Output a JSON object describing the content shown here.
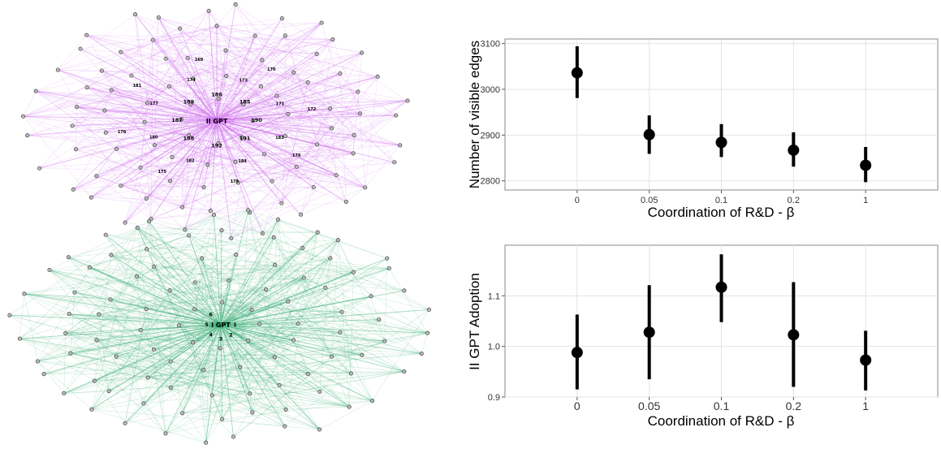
{
  "network": {
    "top": {
      "hub_label": "II GPT",
      "edge_color": "#cc66ee",
      "node_labels": [
        "190",
        "191",
        "192",
        "188",
        "187",
        "189",
        "186",
        "185",
        "183",
        "184",
        "182",
        "180",
        "177",
        "174",
        "173",
        "171",
        "176",
        "179",
        "175",
        "178",
        "181",
        "169",
        "170",
        "172"
      ]
    },
    "bottom": {
      "hub_label": "I GPT",
      "edge_color": "#2eaa6e",
      "node_labels": [
        "1",
        "2",
        "3",
        "4",
        "5",
        "6"
      ]
    }
  },
  "chart_data": [
    {
      "type": "scatter",
      "title": "",
      "xlabel": "Coordination of R&D - β",
      "ylabel": "Number of visible edges",
      "categories": [
        "0",
        "0.05",
        "0.1",
        "0.2",
        "1"
      ],
      "values": [
        3036,
        2901,
        2884,
        2867,
        2834
      ],
      "error_low": [
        2981,
        2859,
        2852,
        2831,
        2797
      ],
      "error_high": [
        3094,
        2943,
        2924,
        2906,
        2874
      ],
      "ylim": [
        2780,
        3110
      ],
      "yticks": [
        "2800",
        "2900",
        "3000",
        "3100"
      ],
      "grid": true
    },
    {
      "type": "scatter",
      "title": "",
      "xlabel": "Coordination of R&D - β",
      "ylabel": "II GPT Adoption",
      "categories": [
        "0",
        "0.05",
        "0.1",
        "0.2",
        "1"
      ],
      "values": [
        0.988,
        1.028,
        1.117,
        1.023,
        0.973
      ],
      "error_low": [
        0.915,
        0.935,
        1.048,
        0.92,
        0.913
      ],
      "error_high": [
        1.063,
        1.121,
        1.182,
        1.127,
        1.031
      ],
      "ylim": [
        0.9,
        1.2
      ],
      "yticks": [
        "0.9",
        "1.0",
        "1.1"
      ],
      "grid": true
    }
  ]
}
